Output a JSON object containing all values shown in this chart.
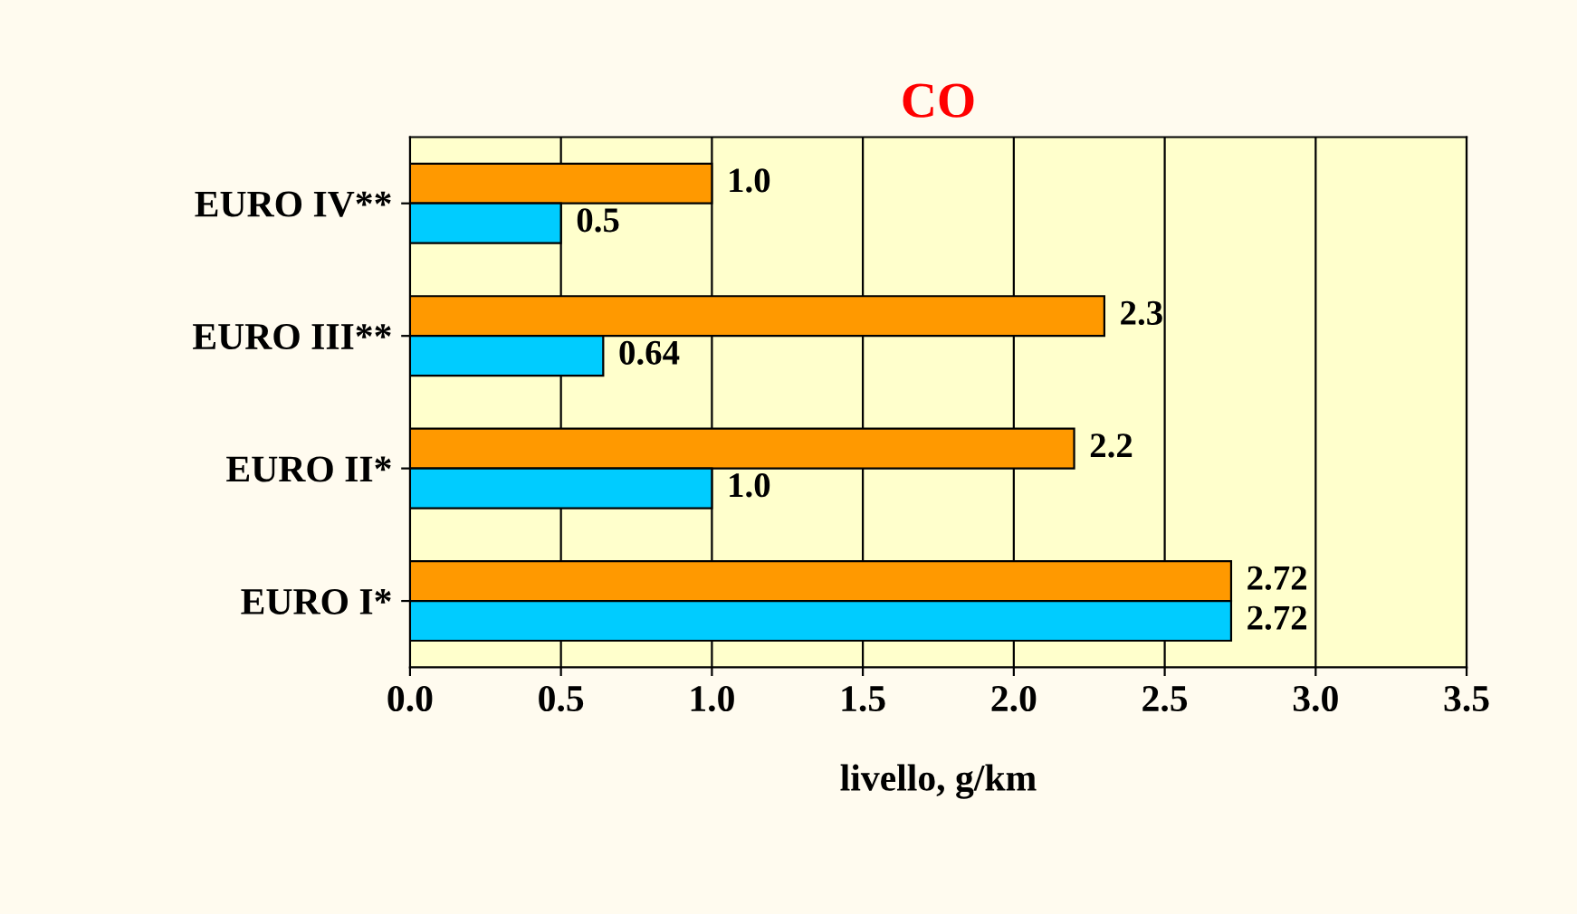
{
  "chart_data": {
    "type": "bar",
    "orientation": "horizontal",
    "title": "CO",
    "xlabel": "livello, g/km",
    "categories": [
      "EURO IV**",
      "EURO III**",
      "EURO II*",
      "EURO I*"
    ],
    "series": [
      {
        "color": "#ff9900",
        "values": [
          1.0,
          2.3,
          2.2,
          2.72
        ],
        "value_labels": [
          "1.0",
          "2.3",
          "2.2",
          "2.72"
        ]
      },
      {
        "color": "#00ccff",
        "values": [
          0.5,
          0.64,
          1.0,
          2.72
        ],
        "value_labels": [
          "0.5",
          "0.64",
          "1.0",
          "2.72"
        ]
      }
    ],
    "xlim": [
      0,
      3.5
    ],
    "xticks": [
      {
        "value": 0,
        "label": "0.0"
      },
      {
        "value": 0.5,
        "label": "0.5"
      },
      {
        "value": 1,
        "label": "1.0"
      },
      {
        "value": 1.5,
        "label": "1.5"
      },
      {
        "value": 2,
        "label": "2.0"
      },
      {
        "value": 2.5,
        "label": "2.5"
      },
      {
        "value": 3,
        "label": "3.0"
      },
      {
        "value": 3.5,
        "label": "3.5"
      }
    ],
    "grid": "x",
    "legend": false
  }
}
